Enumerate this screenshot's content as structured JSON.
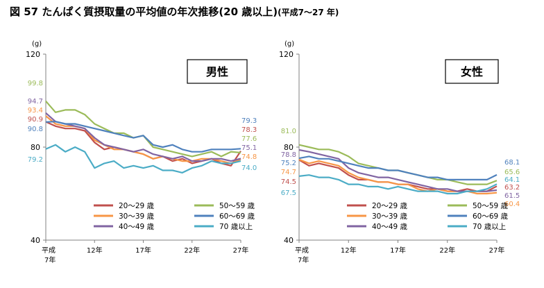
{
  "page": {
    "title": "図 57 たんぱく質摂取量の平均値の年次推移(20 歳以上)",
    "subtitle": "(平成7～27 年)"
  },
  "colors": {
    "20-29": "#c0504d",
    "30-39": "#f79646",
    "40-49": "#8064a2",
    "50-59": "#9bbb59",
    "60-69": "#4f81bd",
    "70+": "#4bacc6",
    "axis": "#808080"
  },
  "chart_data": [
    {
      "type": "line",
      "title": "男性",
      "ylabel": "(g)",
      "ylim": [
        40,
        120
      ],
      "yticks": [
        "120",
        "80",
        "40"
      ],
      "xticks": [
        "平成\n7年",
        "12年",
        "17年",
        "22年",
        "27年"
      ],
      "x": [
        7,
        8,
        9,
        10,
        11,
        12,
        13,
        14,
        15,
        16,
        17,
        18,
        19,
        20,
        21,
        22,
        23,
        24,
        25,
        26,
        27
      ],
      "series": [
        {
          "name": "20～29 歳",
          "key": "20-29",
          "start_label": "90.9",
          "end_label": "78.3",
          "values": [
            90.9,
            89,
            88,
            88,
            87,
            82,
            79,
            80,
            79,
            78,
            77,
            75,
            76,
            74,
            75,
            73,
            74,
            75,
            73,
            72,
            78.3
          ]
        },
        {
          "name": "30～39 歳",
          "key": "30-39",
          "start_label": "93.4",
          "end_label": "74.8",
          "values": [
            93.4,
            90,
            89,
            89,
            88,
            83,
            81,
            79,
            79,
            78,
            77,
            75,
            76,
            75,
            74,
            74,
            75,
            75,
            74,
            73,
            74.8
          ]
        },
        {
          "name": "40～49 歳",
          "key": "40-49",
          "start_label": "94.7",
          "end_label": "75.1",
          "values": [
            94.7,
            91,
            90,
            89,
            88,
            84,
            81,
            80,
            79,
            78,
            79,
            77,
            76,
            75,
            76,
            74,
            74,
            75,
            75,
            74,
            75.1
          ]
        },
        {
          "name": "50～59 歳",
          "key": "50-59",
          "start_label": "99.8",
          "end_label": "77.6",
          "values": [
            99.8,
            95,
            96,
            96,
            94,
            90,
            88,
            86,
            86,
            84,
            85,
            80,
            79,
            78,
            77,
            76,
            77,
            78,
            76,
            78,
            77.6
          ]
        },
        {
          "name": "60～69 歳",
          "key": "60-69",
          "start_label": "90.8",
          "end_label": "79.3",
          "values": [
            90.8,
            91,
            90,
            90,
            89,
            88,
            87,
            86,
            85,
            84,
            85,
            81,
            80,
            81,
            79,
            78,
            78,
            79,
            79,
            79,
            79.3
          ]
        },
        {
          "name": "70 歳以上",
          "key": "70+",
          "start_label": "79.2",
          "end_label": "74.0",
          "values": [
            79.2,
            81,
            78,
            80,
            78,
            71,
            73,
            74,
            71,
            72,
            71,
            72,
            70,
            70,
            69,
            71,
            72,
            74,
            73,
            73,
            74.0
          ]
        }
      ]
    },
    {
      "type": "line",
      "title": "女性",
      "ylabel": "(g)",
      "ylim": [
        40,
        120
      ],
      "yticks": [
        "120",
        "80",
        "40"
      ],
      "xticks": [
        "平成\n7年",
        "12年",
        "17年",
        "22年",
        "27年"
      ],
      "x": [
        7,
        8,
        9,
        10,
        11,
        12,
        13,
        14,
        15,
        16,
        17,
        18,
        19,
        20,
        21,
        22,
        23,
        24,
        25,
        26,
        27
      ],
      "series": [
        {
          "name": "20～29 歳",
          "key": "20-29",
          "start_label": "74.5",
          "end_label": "63.2",
          "values": [
            74.5,
            72,
            73,
            72,
            71,
            68,
            66,
            66,
            65,
            65,
            64,
            64,
            63,
            62,
            62,
            61,
            61,
            62,
            61,
            61,
            63.2
          ]
        },
        {
          "name": "30～39 歳",
          "key": "30-39",
          "start_label": "74.7",
          "end_label": "60.4",
          "values": [
            74.7,
            73,
            74,
            73,
            72,
            69,
            67,
            66,
            65,
            65,
            64,
            64,
            62,
            61,
            62,
            61,
            61,
            61,
            60,
            60,
            60.4
          ]
        },
        {
          "name": "40～49 歳",
          "key": "40-49",
          "start_label": "78.8",
          "end_label": "61.5",
          "values": [
            78.8,
            78,
            77,
            76,
            75,
            71,
            69,
            68,
            67,
            67,
            66,
            65,
            64,
            63,
            62,
            62,
            61,
            61,
            61,
            61,
            61.5
          ]
        },
        {
          "name": "50～59 歳",
          "key": "50-59",
          "start_label": "81.0",
          "end_label": "65.6",
          "values": [
            81.0,
            80,
            79,
            79,
            78,
            76,
            73,
            72,
            71,
            70,
            70,
            69,
            68,
            67,
            66,
            66,
            65,
            64,
            64,
            64,
            65.6
          ]
        },
        {
          "name": "60～69 歳",
          "key": "60-69",
          "start_label": "75.2",
          "end_label": "68.1",
          "values": [
            75.2,
            76,
            75,
            75,
            74,
            73,
            72,
            71,
            71,
            70,
            70,
            69,
            68,
            67,
            67,
            66,
            66,
            66,
            66,
            66,
            68.1
          ]
        },
        {
          "name": "70 歳以上",
          "key": "70+",
          "start_label": "67.5",
          "end_label": "64.1",
          "values": [
            67.5,
            68,
            67,
            67,
            66,
            64,
            64,
            63,
            63,
            62,
            63,
            62,
            61,
            61,
            61,
            60,
            60,
            61,
            61,
            62,
            64.1
          ]
        }
      ]
    }
  ]
}
